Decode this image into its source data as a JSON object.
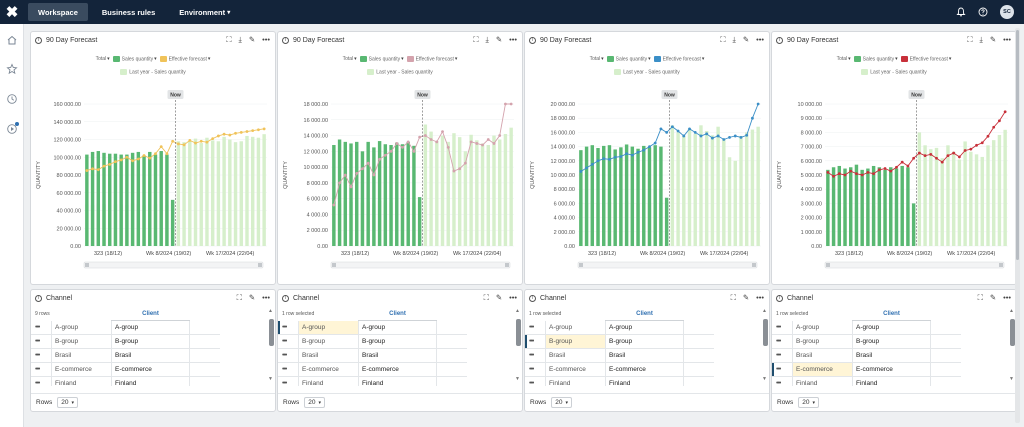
{
  "nav": {
    "logo": "✖",
    "tabs": [
      {
        "label": "Workspace",
        "active": true
      },
      {
        "label": "Business rules",
        "active": false
      },
      {
        "label": "Environment",
        "active": false,
        "chevron": "▾"
      }
    ],
    "avatar": "SC",
    "icons": [
      "bell-icon",
      "help-icon"
    ]
  },
  "sidebar": {
    "icons": [
      "home-icon",
      "star-icon",
      "history-icon",
      "play-icon"
    ]
  },
  "colors": {
    "bar": "#59b872",
    "ly": "#d6efcb",
    "nowline": "#777",
    "s1": "#f0c35a",
    "s2": "#d4a3ad",
    "s3": "#3b8fc7",
    "s4": "#c8303a"
  },
  "panels": [
    {
      "title": "90 Day Forecast",
      "legend": {
        "total": "Total",
        "sales": "Sales quantity",
        "effective": "Effective forecast",
        "last_year": "Last year - Sales quantity"
      },
      "effective_color": "#f0c35a",
      "ylabel": "QUANTITY",
      "yticks": [
        "160 000.00",
        "140 000.00",
        "120 000.00",
        "100 000.00",
        "80 000.00",
        "60 000.00",
        "40 000.00",
        "20 000.00",
        "0.00"
      ],
      "ymax": 160000,
      "xticks": [
        "323 (18/12)",
        "Wk 8/2024 (19/02)",
        "Wk 17/2024 (22/04)"
      ],
      "now_label": "Now",
      "bars": [
        103000,
        106000,
        107000,
        105000,
        104000,
        104000,
        103000,
        103000,
        105000,
        106000,
        102000,
        106000,
        103000,
        107000,
        103000,
        52000
      ],
      "ly": [
        47000,
        46000,
        48000,
        47000,
        46000,
        47000,
        47000,
        46000,
        48000,
        47000,
        46000,
        47000,
        47000,
        48000,
        46000,
        48000,
        118000,
        117000,
        118000,
        121000,
        116000,
        122000,
        119000,
        118000,
        123000,
        120000,
        117000,
        118000,
        124000,
        123000,
        122000,
        126000
      ],
      "line": [
        85000,
        87000,
        86000,
        90000,
        92000,
        95000,
        97000,
        100000,
        96000,
        98000,
        102000,
        99000,
        104000,
        112000,
        104000,
        118000,
        115000,
        114000,
        119000,
        116000,
        118000,
        117000,
        121000,
        124000,
        126000,
        125000,
        127000,
        128000,
        129000,
        130000,
        131000,
        132000
      ],
      "channel": {
        "title": "Channel",
        "rows_label": "9 rows",
        "col_header": "Client",
        "rows": [
          {
            "c1": "A-group",
            "c2": "A-group"
          },
          {
            "c1": "B-group",
            "c2": "B-group"
          },
          {
            "c1": "Brasil",
            "c2": "Brasil"
          },
          {
            "c1": "E-commerce",
            "c2": "E-commerce"
          },
          {
            "c1": "Finland",
            "c2": "Finland"
          }
        ],
        "selected": -1,
        "footer_label": "Rows",
        "rows_value": "20"
      }
    },
    {
      "title": "90 Day Forecast",
      "legend": {
        "total": "Total",
        "sales": "Sales quantity",
        "effective": "Effective forecast",
        "last_year": "Last year - Sales quantity"
      },
      "effective_color": "#d4a3ad",
      "ylabel": "QUANTITY",
      "yticks": [
        "18 000.00",
        "16 000.00",
        "14 000.00",
        "12 000.00",
        "10 000.00",
        "8 000.00",
        "6 000.00",
        "4 000.00",
        "2 000.00",
        "0.00"
      ],
      "ymax": 18000,
      "xticks": [
        "323 (18/12)",
        "Wk 8/2024 (19/02)",
        "Wk 17/2024 (22/04)"
      ],
      "now_label": "Now",
      "bars": [
        12800,
        13500,
        13200,
        13000,
        13200,
        12000,
        13200,
        12500,
        13300,
        12900,
        12800,
        13100,
        12900,
        13200,
        12700,
        6200
      ],
      "ly": [
        5600,
        5400,
        5700,
        5600,
        5500,
        5500,
        5600,
        5400,
        5700,
        5500,
        5500,
        5600,
        5400,
        5700,
        5500,
        5600,
        15400,
        14500,
        13300,
        14000,
        13200,
        14300,
        13800,
        12000,
        14100,
        13400,
        13000,
        12800,
        14000,
        13500,
        14200,
        15000
      ],
      "line": [
        5200,
        8000,
        9000,
        7500,
        9200,
        9800,
        10500,
        9000,
        11000,
        11500,
        12000,
        13000,
        12500,
        13200,
        12000,
        13800,
        14000,
        13500,
        13200,
        14500,
        12500,
        9500,
        9800,
        10500,
        13200,
        13000,
        12800,
        13500,
        13000,
        14000,
        18000,
        19500
      ],
      "channel": {
        "title": "Channel",
        "rows_label": "1 row selected",
        "col_header": "Client",
        "rows": [
          {
            "c1": "A-group",
            "c2": "A-group"
          },
          {
            "c1": "B-group",
            "c2": "B-group"
          },
          {
            "c1": "Brasil",
            "c2": "Brasil"
          },
          {
            "c1": "E-commerce",
            "c2": "E-commerce"
          },
          {
            "c1": "Finland",
            "c2": "Finland"
          }
        ],
        "selected": 0,
        "footer_label": "Rows",
        "rows_value": "20"
      }
    },
    {
      "title": "90 Day Forecast",
      "legend": {
        "total": "Total",
        "sales": "Sales quantity",
        "effective": "Effective forecast",
        "last_year": "Last year - Sales quantity"
      },
      "effective_color": "#3b8fc7",
      "ylabel": "QUANTITY",
      "yticks": [
        "20 000.00",
        "18 000.00",
        "16 000.00",
        "14 000.00",
        "12 000.00",
        "10 000.00",
        "8 000.00",
        "6 000.00",
        "4 000.00",
        "2 000.00",
        "0.00"
      ],
      "ymax": 20000,
      "xticks": [
        "323 (18/12)",
        "Wk 8/2024 (19/02)",
        "Wk 17/2024 (22/04)"
      ],
      "now_label": "Now",
      "bars": [
        13500,
        14000,
        14200,
        13800,
        14100,
        14200,
        13600,
        13900,
        14300,
        14000,
        13700,
        14100,
        13900,
        14200,
        14000,
        6800
      ],
      "ly": [
        6200,
        6000,
        6300,
        6100,
        6000,
        6200,
        6100,
        6000,
        6300,
        6100,
        6000,
        6200,
        6000,
        6300,
        6100,
        6200,
        17000,
        16000,
        15500,
        16500,
        15800,
        17000,
        16200,
        15600,
        16800,
        15000,
        12500,
        12000,
        15500,
        16000,
        16400,
        16800
      ],
      "line": [
        10500,
        11000,
        11500,
        12000,
        12300,
        12200,
        12500,
        12600,
        13000,
        12800,
        13200,
        13500,
        14000,
        14500,
        16500,
        16000,
        16800,
        16200,
        15500,
        16500,
        16000,
        15500,
        15800,
        15200,
        15500,
        15000,
        15300,
        15500,
        15300,
        15600,
        18000,
        21000
      ],
      "channel": {
        "title": "Channel",
        "rows_label": "1 row selected",
        "col_header": "Client",
        "rows": [
          {
            "c1": "A-group",
            "c2": "A-group"
          },
          {
            "c1": "B-group",
            "c2": "B-group"
          },
          {
            "c1": "Brasil",
            "c2": "Brasil"
          },
          {
            "c1": "E-commerce",
            "c2": "E-commerce"
          },
          {
            "c1": "Finland",
            "c2": "Finland"
          }
        ],
        "selected": 1,
        "footer_label": "Rows",
        "rows_value": "20"
      }
    },
    {
      "title": "90 Day Forecast",
      "legend": {
        "total": "Total",
        "sales": "Sales quantity",
        "effective": "Effective forecast",
        "last_year": "Last year - Sales quantity"
      },
      "effective_color": "#c8303a",
      "ylabel": "QUANTITY",
      "yticks": [
        "10 000.00",
        "9 000.00",
        "8 000.00",
        "7 000.00",
        "6 000.00",
        "5 000.00",
        "4 000.00",
        "3 000.00",
        "2 000.00",
        "1 000.00",
        "0.00"
      ],
      "ymax": 11000,
      "xticks": [
        "323 (18/12)",
        "Wk 8/2024 (19/02)",
        "Wk 17/2024 (22/04)"
      ],
      "now_label": "Now",
      "bars": [
        5900,
        6100,
        6200,
        6000,
        6100,
        6300,
        5900,
        6000,
        6200,
        6100,
        5900,
        6100,
        6000,
        6200,
        6100,
        3300
      ],
      "ly": [
        3000,
        2900,
        3100,
        3000,
        2900,
        3000,
        3000,
        2900,
        3100,
        3000,
        2900,
        3000,
        2900,
        3100,
        3000,
        3000,
        8800,
        7800,
        7500,
        7600,
        6800,
        7800,
        7300,
        6700,
        8100,
        7300,
        7100,
        6900,
        7800,
        8200,
        8600,
        9000
      ],
      "line": [
        5700,
        5400,
        5600,
        5500,
        5800,
        5600,
        5500,
        5700,
        5600,
        5900,
        6000,
        5800,
        6100,
        6500,
        6200,
        6800,
        7200,
        7000,
        7100,
        6800,
        6500,
        7000,
        7200,
        6900,
        7400,
        7500,
        7800,
        8000,
        8500,
        9200,
        9700,
        10400
      ],
      "channel": {
        "title": "Channel",
        "rows_label": "1 row selected",
        "col_header": "Client",
        "rows": [
          {
            "c1": "A-group",
            "c2": "A-group"
          },
          {
            "c1": "B-group",
            "c2": "B-group"
          },
          {
            "c1": "Brasil",
            "c2": "Brasil"
          },
          {
            "c1": "E-commerce",
            "c2": "E-commerce"
          },
          {
            "c1": "Finland",
            "c2": "Finland"
          }
        ],
        "selected": 3,
        "footer_label": "Rows",
        "rows_value": "20"
      }
    }
  ]
}
